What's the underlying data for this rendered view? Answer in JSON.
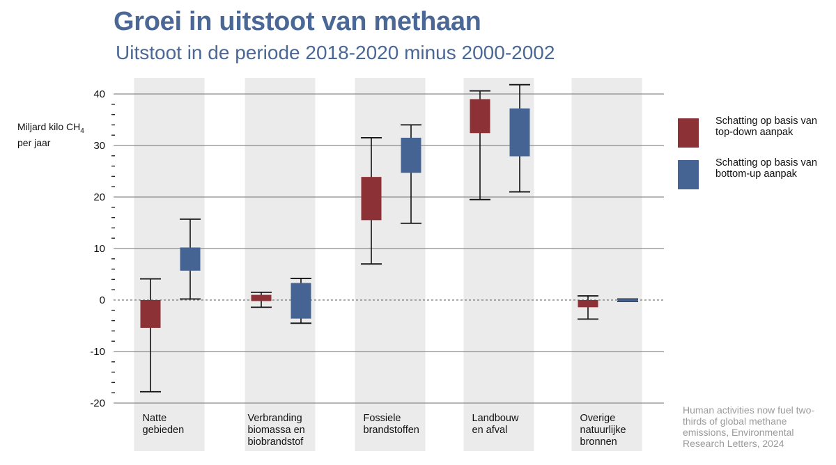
{
  "title": "Groei in uitstoot van methaan",
  "subtitle": "Uitstoot in de periode 2018-2020 minus 2000-2002",
  "ylabel": {
    "line1": "Miljard kilo CH",
    "sub": "4",
    "line2": "per jaar"
  },
  "legend": [
    {
      "label": "Schatting op basis van top-down aanpak",
      "color": "#8c3236"
    },
    {
      "label": "Schatting op basis van bottom-up aanpak",
      "color": "#456494"
    }
  ],
  "source": "Human activities now fuel two-thirds of global methane emissions, Environmental Research Letters, 2024",
  "chart_data": {
    "type": "box",
    "title": "Groei in uitstoot van methaan",
    "subtitle": "Uitstoot in de periode 2018-2020 minus 2000-2002",
    "ylabel": "Miljard kilo CH4 per jaar",
    "ylim": [
      -20,
      40
    ],
    "yticks": [
      -20,
      -10,
      0,
      10,
      20,
      30,
      40
    ],
    "grid": true,
    "legend_position": "right",
    "categories": [
      [
        "Natte",
        "gebieden"
      ],
      [
        "Verbranding",
        "biomassa en",
        "biobrandstof"
      ],
      [
        "Fossiele",
        "brandstoffen"
      ],
      [
        "Landbouw",
        "en afval"
      ],
      [
        "Overige",
        "natuurlijke",
        "bronnen"
      ]
    ],
    "series": [
      {
        "name": "Schatting op basis van top-down aanpak",
        "color": "#8c3236",
        "values": [
          {
            "low": -17.8,
            "q1": -5.4,
            "q3": 0,
            "high": 4.1
          },
          {
            "low": -1.4,
            "q1": -0.2,
            "q3": 1.0,
            "high": 1.5
          },
          {
            "low": 7.0,
            "q1": 15.5,
            "q3": 23.9,
            "high": 31.5
          },
          {
            "low": 19.5,
            "q1": 32.4,
            "q3": 39.0,
            "high": 40.6
          },
          {
            "low": -3.7,
            "q1": -1.4,
            "q3": 0,
            "high": 0.8
          }
        ]
      },
      {
        "name": "Schatting op basis van bottom-up aanpak",
        "color": "#456494",
        "values": [
          {
            "low": 0.2,
            "q1": 5.7,
            "q3": 10.2,
            "high": 15.7
          },
          {
            "low": -4.5,
            "q1": -3.6,
            "q3": 3.3,
            "high": 4.2
          },
          {
            "low": 14.9,
            "q1": 24.7,
            "q3": 31.5,
            "high": 34.0
          },
          {
            "low": 21.0,
            "q1": 27.9,
            "q3": 37.2,
            "high": 41.8
          },
          {
            "low": -0.25,
            "q1": -0.25,
            "q3": 0.2,
            "high": 0.2
          }
        ]
      }
    ]
  }
}
